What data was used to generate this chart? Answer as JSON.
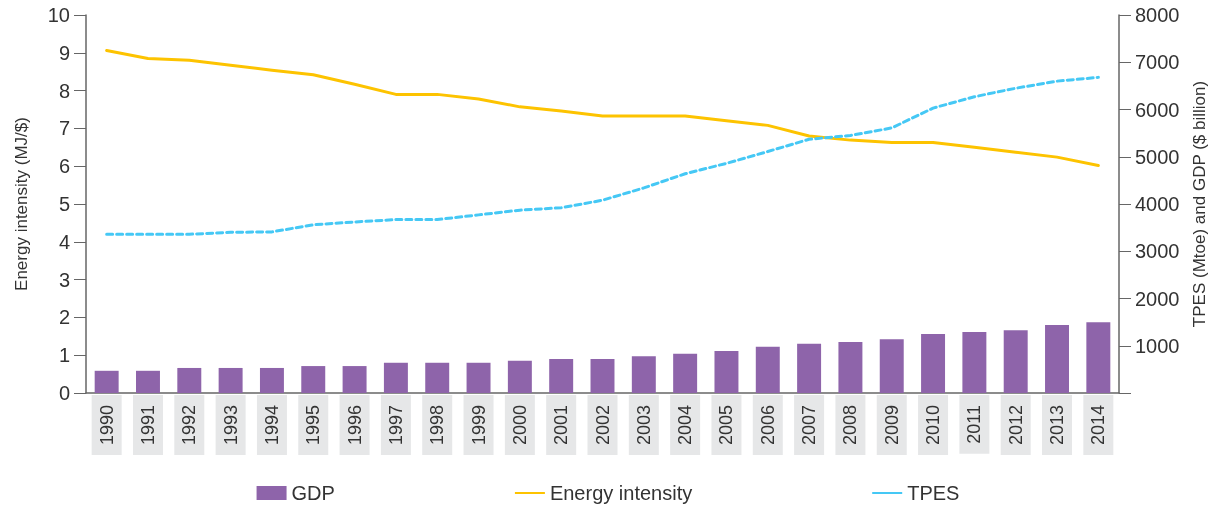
{
  "chart_data": {
    "type": "line",
    "ylabel": "Energy intensity (MJ/$)",
    "y2label": "TPES (Mtoe) and GDP ($ billion)",
    "categories": [
      "1990",
      "1991",
      "1992",
      "1993",
      "1994",
      "1995",
      "1996",
      "1997",
      "1998",
      "1999",
      "2000",
      "2001",
      "2002",
      "2003",
      "2004",
      "2005",
      "2006",
      "2007",
      "2008",
      "2009",
      "2010",
      "2011",
      "2012",
      "2013",
      "2014"
    ],
    "series": [
      {
        "name": "GDP",
        "type": "bar",
        "axis": "y2",
        "color": "#8e64aa",
        "values": [
          470,
          470,
          530,
          530,
          530,
          570,
          570,
          640,
          640,
          640,
          680,
          720,
          720,
          780,
          830,
          890,
          980,
          1040,
          1080,
          1140,
          1250,
          1290,
          1330,
          1440,
          1500
        ]
      },
      {
        "name": "Energy intensity",
        "axis": "y",
        "color": "#fdc300",
        "line_style": "solid",
        "values": [
          9.06,
          8.85,
          8.8,
          8.67,
          8.54,
          8.42,
          8.17,
          7.9,
          7.9,
          7.78,
          7.57,
          7.46,
          7.33,
          7.33,
          7.33,
          7.2,
          7.08,
          6.8,
          6.69,
          6.63,
          6.63,
          6.5,
          6.37,
          6.24,
          6.02
        ]
      },
      {
        "name": "TPES",
        "axis": "y2",
        "color": "#45c8f5",
        "line_style": "dashed",
        "values": [
          3360,
          3360,
          3360,
          3400,
          3410,
          3560,
          3620,
          3670,
          3670,
          3770,
          3870,
          3920,
          4080,
          4340,
          4640,
          4860,
          5110,
          5370,
          5450,
          5610,
          6030,
          6270,
          6450,
          6600,
          6680
        ]
      }
    ],
    "ylim": [
      0,
      10
    ],
    "yticks": [
      0,
      1,
      2,
      3,
      4,
      5,
      6,
      7,
      8,
      9,
      10
    ],
    "y2lim": [
      0,
      8000
    ],
    "y2ticks": [
      {
        "value": 0,
        "label": null
      },
      1000,
      2000,
      3000,
      4000,
      5000,
      6000,
      7000,
      8000
    ],
    "marker": "none",
    "grid": false,
    "legend": "bottom"
  }
}
